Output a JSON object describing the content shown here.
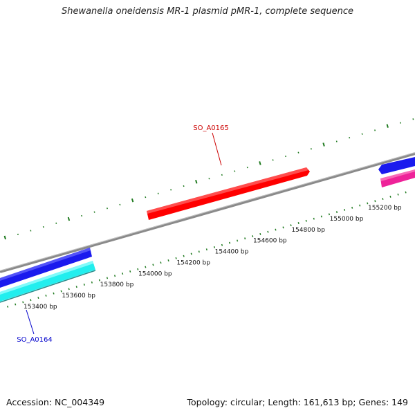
{
  "title": "Shewanella oneidensis MR-1 plasmid pMR-1, complete sequence",
  "footer": {
    "accession": "Accession: NC_004349",
    "summary": "Topology: circular; Length: 161,613 bp; Genes: 149"
  },
  "colors": {
    "backbone": "#8a8a8a",
    "ticks": "#1f7a1f",
    "forward_gene_label": "#cc0000",
    "reverse_gene_label": "#0000cc"
  },
  "ruler_labels": [
    {
      "bp": 153400,
      "text": "153400 bp"
    },
    {
      "bp": 153600,
      "text": "153600 bp"
    },
    {
      "bp": 153800,
      "text": "153800 bp"
    },
    {
      "bp": 154000,
      "text": "154000 bp"
    },
    {
      "bp": 154200,
      "text": "154200 bp"
    },
    {
      "bp": 154400,
      "text": "154400 bp"
    },
    {
      "bp": 154600,
      "text": "154600 bp"
    },
    {
      "bp": 154800,
      "text": "154800 bp"
    },
    {
      "bp": 155000,
      "text": "155000 bp"
    },
    {
      "bp": 155200,
      "text": "155200 bp"
    }
  ],
  "gene_labels": {
    "so_a0165": "SO_A0165",
    "so_a0164": "SO_A0164"
  },
  "features": [
    {
      "id": "so_a0165",
      "color": "#ff0000",
      "strand": "+"
    },
    {
      "id": "blue-left",
      "color": "#1a1aee",
      "strand": "-"
    },
    {
      "id": "cyan-left",
      "color": "#22eeee",
      "strand": "-"
    },
    {
      "id": "blue-right",
      "color": "#1a1aee",
      "strand": "-"
    },
    {
      "id": "magenta-right",
      "color": "#ee2299",
      "strand": "-"
    }
  ]
}
